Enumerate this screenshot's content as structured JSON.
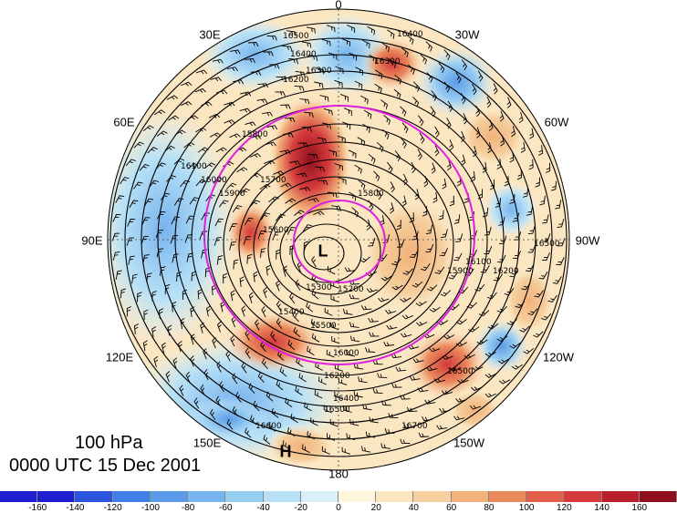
{
  "level_label": "100 hPa",
  "time_label": "0000 UTC 15 Dec 2001",
  "longitude_labels": [
    "0",
    "30W",
    "60W",
    "90W",
    "120W",
    "150W",
    "180",
    "150E",
    "120E",
    "90E",
    "60E",
    "30E"
  ],
  "pressure_center_labels": {
    "low": "L",
    "high": "H"
  },
  "contour_labels": [
    "16500",
    "16400",
    "16300",
    "16200",
    "16100",
    "16000",
    "15900",
    "15800",
    "15700",
    "15600",
    "15500",
    "15400",
    "15300",
    "15200",
    "16600",
    "16700"
  ],
  "colorbar": {
    "tick_labels": [
      "-160",
      "-140",
      "-120",
      "-100",
      "-80",
      "-60",
      "-40",
      "-20",
      "0",
      "20",
      "40",
      "60",
      "80",
      "100",
      "120",
      "140",
      "160"
    ],
    "colors": [
      "#1f1fd0",
      "#2a55dc",
      "#3f7fe6",
      "#5b9ae8",
      "#78b4ee",
      "#98cdf2",
      "#b8e1f6",
      "#d9f0fa",
      "#fdf6dd",
      "#fbe6c2",
      "#f6cf9e",
      "#f1b27b",
      "#ea8a5c",
      "#e25e4b",
      "#d43a3b",
      "#b81f2d",
      "#8e0f1e"
    ]
  },
  "anomaly_blobs": [
    {
      "name": "anomaly-positive-north-siberia",
      "color": "#b81f2d"
    },
    {
      "name": "anomaly-positive-north-atlantic",
      "color": "#e25e4b"
    },
    {
      "name": "anomaly-positive-north-pacific",
      "color": "#d43a3b"
    },
    {
      "name": "anomaly-negative-east-siberia",
      "color": "#5b9ae8"
    }
  ]
}
